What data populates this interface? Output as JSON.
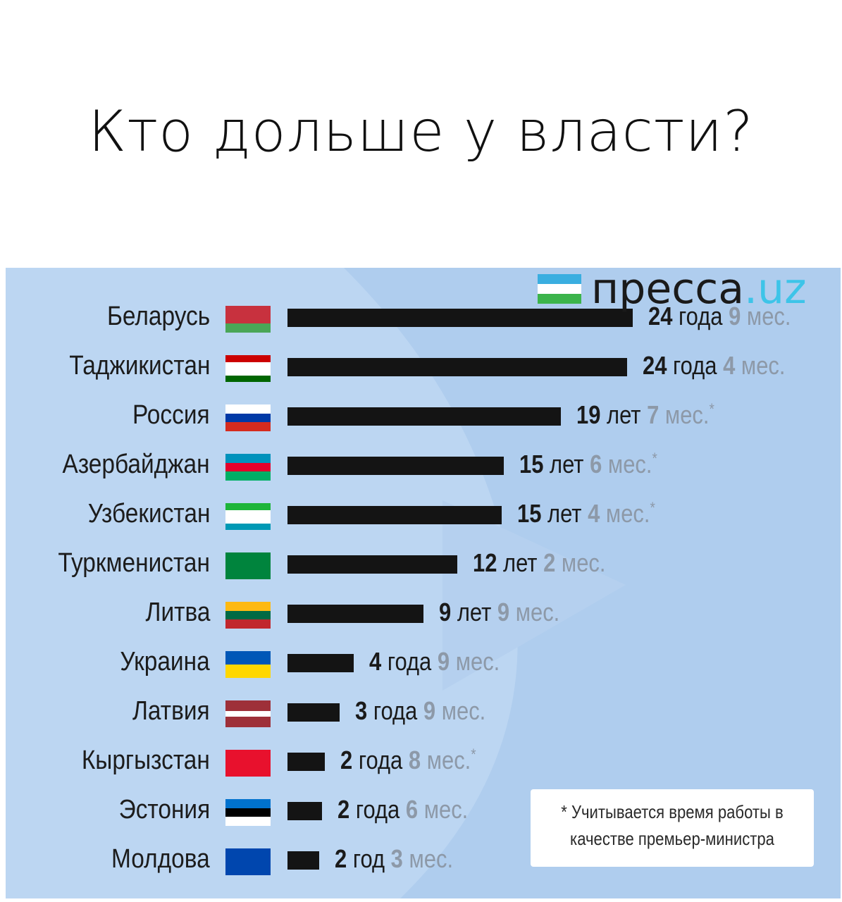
{
  "title": "Кто дольше у власти?",
  "logo": {
    "name": "пресса",
    "tld": ".uz"
  },
  "note": {
    "line1": "* Учитывается время работы в",
    "line2": "качестве премьер-министра"
  },
  "colors": {
    "panel": "#bcd6f2",
    "bar": "#141414",
    "muted": "#8d99a8"
  },
  "chart_data": {
    "type": "bar",
    "orientation": "horizontal",
    "title": "Кто дольше у власти?",
    "categories": [
      "Беларусь",
      "Таджикистан",
      "Россия",
      "Азербайджан",
      "Узбекистан",
      "Туркменистан",
      "Литва",
      "Украина",
      "Латвия",
      "Кыргызстан",
      "Эстония",
      "Молдова"
    ],
    "values_years": [
      24.75,
      24.33,
      19.58,
      15.5,
      15.33,
      12.17,
      9.75,
      4.75,
      3.75,
      2.67,
      2.5,
      2.25
    ],
    "labels": [
      {
        "n1": "24",
        "u1": "года",
        "n2": "9",
        "u2": "мес.",
        "star": ""
      },
      {
        "n1": "24",
        "u1": "года",
        "n2": "4",
        "u2": "мес.",
        "star": ""
      },
      {
        "n1": "19",
        "u1": "лет",
        "n2": "7",
        "u2": "мес.",
        "star": "*"
      },
      {
        "n1": "15",
        "u1": "лет",
        "n2": "6",
        "u2": "мес.",
        "star": "*"
      },
      {
        "n1": "15",
        "u1": "лет",
        "n2": "4",
        "u2": "мес.",
        "star": "*"
      },
      {
        "n1": "12",
        "u1": "лет",
        "n2": "2",
        "u2": "мес.",
        "star": ""
      },
      {
        "n1": "9",
        "u1": "лет",
        "n2": "9",
        "u2": "мес.",
        "star": ""
      },
      {
        "n1": "4",
        "u1": "года",
        "n2": "9",
        "u2": "мес.",
        "star": ""
      },
      {
        "n1": "3",
        "u1": "года",
        "n2": "9",
        "u2": "мес.",
        "star": ""
      },
      {
        "n1": "2",
        "u1": "года",
        "n2": "8",
        "u2": "мес.",
        "star": "*"
      },
      {
        "n1": "2",
        "u1": "года",
        "n2": "6",
        "u2": "мес.",
        "star": ""
      },
      {
        "n1": "2",
        "u1": "год",
        "n2": "3",
        "u2": "мес.",
        "star": ""
      }
    ],
    "flags": [
      {
        "icon": "flag-belarus-icon",
        "stripes": [
          "#c8313e",
          "#c8313e",
          "#4aa657"
        ]
      },
      {
        "icon": "flag-tajikistan-icon",
        "stripes": [
          "#cc0000",
          "#ffffff",
          "#ffffff",
          "#006600"
        ]
      },
      {
        "icon": "flag-russia-icon",
        "stripes": [
          "#ffffff",
          "#0039a6",
          "#d52b1e"
        ]
      },
      {
        "icon": "flag-azerbaijan-icon",
        "stripes": [
          "#0092bc",
          "#e4002b",
          "#00af66"
        ]
      },
      {
        "icon": "flag-uzbekistan-icon",
        "stripes": [
          "#1eb53a",
          "#ffffff",
          "#ffffff",
          "#0099b5"
        ]
      },
      {
        "icon": "flag-turkmenistan-icon",
        "stripes": [
          "#00843d"
        ]
      },
      {
        "icon": "flag-lithuania-icon",
        "stripes": [
          "#fdb913",
          "#006a44",
          "#c1272d"
        ]
      },
      {
        "icon": "flag-ukraine-icon",
        "stripes": [
          "#0057b7",
          "#ffd700"
        ]
      },
      {
        "icon": "flag-latvia-icon",
        "stripes": [
          "#9e3039",
          "#9e3039",
          "#ffffff",
          "#9e3039",
          "#9e3039"
        ]
      },
      {
        "icon": "flag-kyrgyzstan-icon",
        "stripes": [
          "#e8112d"
        ]
      },
      {
        "icon": "flag-estonia-icon",
        "stripes": [
          "#0072ce",
          "#000000",
          "#ffffff"
        ]
      },
      {
        "icon": "flag-moldova-icon",
        "stripes": [
          "#0046ae"
        ]
      }
    ]
  }
}
